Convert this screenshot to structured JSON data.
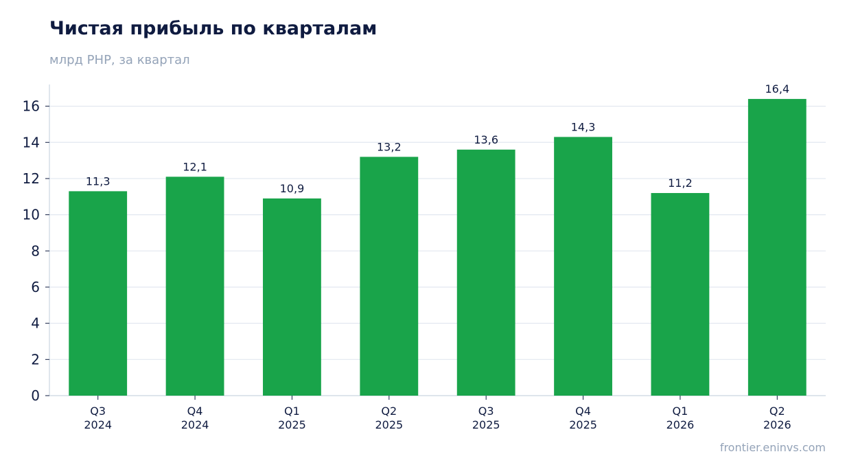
{
  "title": "Чистая прибыль по кварталам",
  "subtitle": "млрд РНР, за квартал",
  "source": "frontier.eninvs.com",
  "colors": {
    "bar": "#19a44a",
    "title": "#0f1b40",
    "muted": "#94a3b8",
    "grid": "#e2e8f0",
    "axis": "#cbd5e1",
    "text": "#0f1b40"
  },
  "chart_data": {
    "type": "bar",
    "categories": [
      "Q3\n2024",
      "Q4\n2024",
      "Q1\n2025",
      "Q2\n2025",
      "Q3\n2025",
      "Q4\n2025",
      "Q1\n2026",
      "Q2\n2026"
    ],
    "values": [
      11.3,
      12.1,
      10.9,
      13.2,
      13.6,
      14.3,
      11.2,
      16.4
    ],
    "value_labels": [
      "11,3",
      "12,1",
      "10,9",
      "13,2",
      "13,6",
      "14,3",
      "11,2",
      "16,4"
    ],
    "title": "Чистая прибыль по кварталам",
    "subtitle": "млрд РНР, за квартал",
    "xlabel": "",
    "ylabel": "",
    "ylim": [
      0,
      17.2
    ],
    "yticks": [
      0,
      2,
      4,
      6,
      8,
      10,
      12,
      14,
      16
    ],
    "grid": "horizontal",
    "legend": "none"
  }
}
